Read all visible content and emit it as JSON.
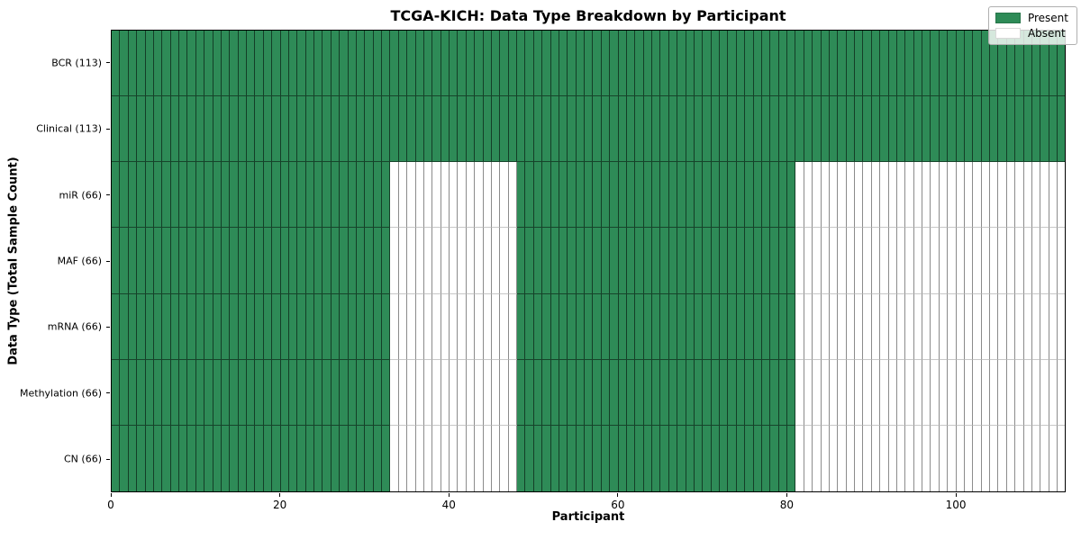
{
  "chart_data": {
    "type": "heatmap",
    "title": "TCGA-KICH: Data Type Breakdown by Participant",
    "xlabel": "Participant",
    "ylabel": "Data Type (Total Sample Count)",
    "xlim": [
      0,
      113
    ],
    "n_participants": 113,
    "x_ticks": [
      0,
      20,
      40,
      60,
      80,
      100
    ],
    "grid": true,
    "legend_position": "upper right",
    "legend": [
      {
        "label": "Present",
        "color": "#2e8b57"
      },
      {
        "label": "Absent",
        "color": "#ffffff"
      }
    ],
    "colors": {
      "present": "#2e8b57",
      "absent": "#ffffff",
      "spine": "#000000"
    },
    "rows": [
      {
        "label": "BCR (113)",
        "total_samples": 113,
        "present_ranges": [
          [
            0,
            113
          ]
        ]
      },
      {
        "label": "Clinical (113)",
        "total_samples": 113,
        "present_ranges": [
          [
            0,
            113
          ]
        ]
      },
      {
        "label": "miR (66)",
        "total_samples": 66,
        "present_ranges": [
          [
            0,
            33
          ],
          [
            48,
            81
          ]
        ]
      },
      {
        "label": "MAF (66)",
        "total_samples": 66,
        "present_ranges": [
          [
            0,
            33
          ],
          [
            48,
            81
          ]
        ]
      },
      {
        "label": "mRNA (66)",
        "total_samples": 66,
        "present_ranges": [
          [
            0,
            33
          ],
          [
            48,
            81
          ]
        ]
      },
      {
        "label": "Methylation (66)",
        "total_samples": 66,
        "present_ranges": [
          [
            0,
            33
          ],
          [
            48,
            81
          ]
        ]
      },
      {
        "label": "CN (66)",
        "total_samples": 66,
        "present_ranges": [
          [
            0,
            33
          ],
          [
            48,
            81
          ]
        ]
      }
    ]
  }
}
